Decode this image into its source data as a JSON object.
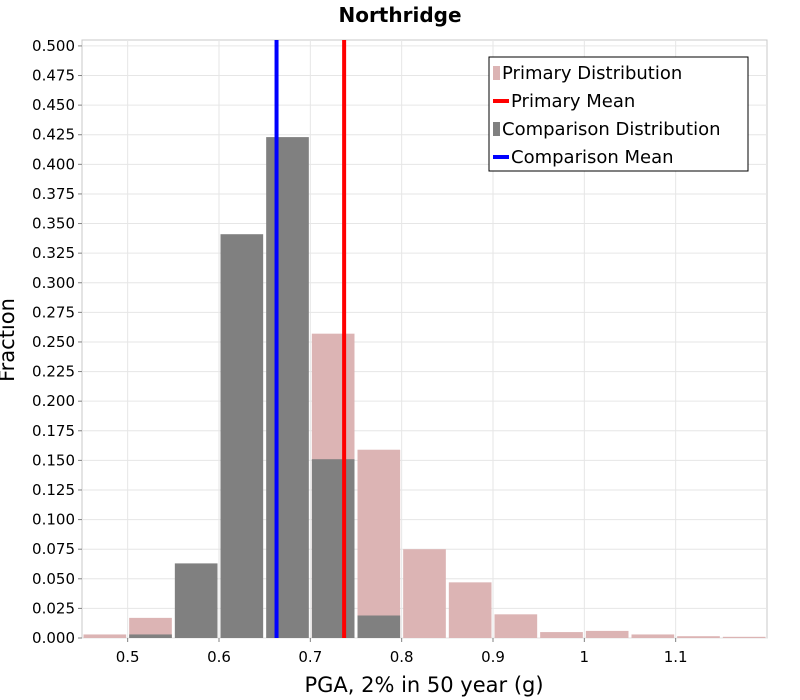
{
  "chart_data": {
    "type": "bar",
    "title": "Northridge",
    "xlabel": "PGA, 2% in 50 year (g)",
    "ylabel": "Fraction",
    "xlim": [
      0.45,
      1.2
    ],
    "ylim": [
      0,
      0.505
    ],
    "bin_width": 0.05,
    "x_ticks": [
      "0.5",
      "0.6",
      "0.7",
      "0.8",
      "0.9",
      "1",
      "1.1"
    ],
    "x_tick_values": [
      0.5,
      0.6,
      0.7,
      0.8,
      0.9,
      1.0,
      1.1
    ],
    "y_ticks": [
      "0.000",
      "0.025",
      "0.050",
      "0.075",
      "0.100",
      "0.125",
      "0.150",
      "0.175",
      "0.200",
      "0.225",
      "0.250",
      "0.275",
      "0.300",
      "0.325",
      "0.350",
      "0.375",
      "0.400",
      "0.425",
      "0.450",
      "0.475",
      "0.500"
    ],
    "y_tick_values": [
      0,
      0.025,
      0.05,
      0.075,
      0.1,
      0.125,
      0.15,
      0.175,
      0.2,
      0.225,
      0.25,
      0.275,
      0.3,
      0.325,
      0.35,
      0.375,
      0.4,
      0.425,
      0.45,
      0.475,
      0.5
    ],
    "grid": true,
    "legend_position": "top-right",
    "series": [
      {
        "name": "Primary Distribution",
        "kind": "bars",
        "color": "#dcb4b4",
        "x": [
          0.475,
          0.525,
          0.575,
          0.625,
          0.675,
          0.725,
          0.775,
          0.825,
          0.875,
          0.925,
          0.975,
          1.025,
          1.075,
          1.125,
          1.175
        ],
        "values": [
          0.003,
          0.017,
          0.0,
          0.0,
          0.0,
          0.257,
          0.159,
          0.075,
          0.047,
          0.02,
          0.005,
          0.006,
          0.003,
          0.0015,
          0.001
        ]
      },
      {
        "name": "Primary Mean",
        "kind": "vline",
        "color": "#ff0000",
        "value": 0.737
      },
      {
        "name": "Comparison Distribution",
        "kind": "bars",
        "color": "#808080",
        "x": [
          0.525,
          0.575,
          0.625,
          0.675,
          0.725,
          0.775
        ],
        "values": [
          0.003,
          0.063,
          0.341,
          0.423,
          0.151,
          0.019
        ]
      },
      {
        "name": "Comparison Mean",
        "kind": "vline",
        "color": "#0000ff",
        "value": 0.663
      }
    ]
  }
}
